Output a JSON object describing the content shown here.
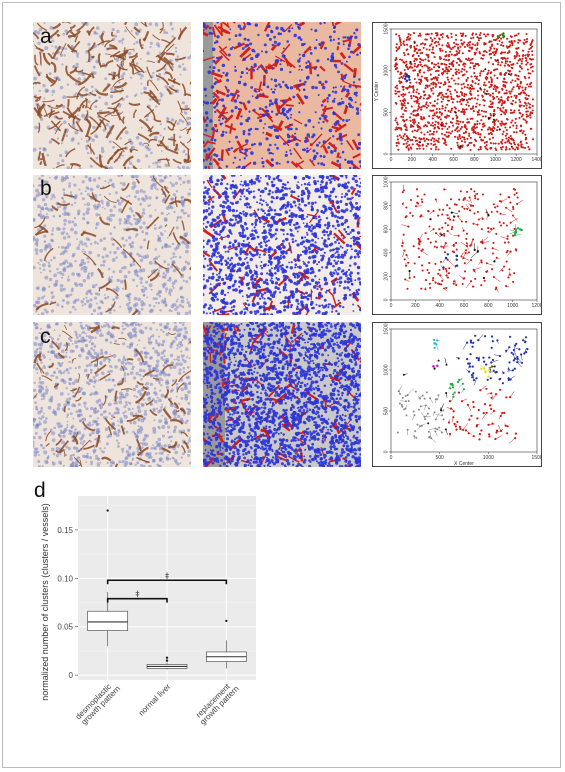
{
  "panels": {
    "a": {
      "letter": "a"
    },
    "b": {
      "letter": "b"
    },
    "c": {
      "letter": "c"
    },
    "d": {
      "letter": "d"
    }
  },
  "colors": {
    "tissue_bg": "#efe4dc",
    "stain_brown": "#8a4a26",
    "nuclei_blue": "#7a86c4",
    "overlay_blue": "#2b34d6",
    "overlay_red": "#d0231e",
    "overlay_bg": "#f3ece6",
    "point_red": "#cc1c17",
    "ggplot_bg": "#ebebeb"
  },
  "scatter_a": {
    "x_ticks": [
      "0",
      "200",
      "400",
      "600",
      "800",
      "1000",
      "1200",
      "1400"
    ],
    "y_ticks": [
      "0",
      "500",
      "1000",
      "1500"
    ],
    "ylabel": "Y Center",
    "cluster_colors": [
      "#cc1c17",
      "#1f8a1f",
      "#1f2ea8",
      "#111111"
    ]
  },
  "scatter_b": {
    "x_ticks": [
      "0",
      "200",
      "400",
      "600",
      "800",
      "1000",
      "1200"
    ],
    "y_ticks": [
      "0",
      "200",
      "400",
      "600",
      "800",
      "1000"
    ],
    "cluster_colors": [
      "#cc1c17",
      "#2aa84a",
      "#1f2ea8",
      "#111111"
    ]
  },
  "scatter_c": {
    "x_ticks": [
      "0",
      "500",
      "1000",
      "1500"
    ],
    "y_ticks": [
      "0",
      "500",
      "1000",
      "1500"
    ],
    "xlabel": "X Center",
    "cluster_colors": [
      "#888888",
      "#1f2ea8",
      "#cc1c17",
      "#2aa84a",
      "#e0e020",
      "#d020c0",
      "#20c0d0",
      "#111111"
    ]
  },
  "chart_data": {
    "type": "box",
    "ylabel": "normalized number of clusters (clusters / vessels)",
    "categories": [
      "desmoplastic growth pattern",
      "normal liver",
      "replacement growth pattern"
    ],
    "y_ticks": [
      "0",
      "0.05",
      "0.10",
      "0.15"
    ],
    "ylim": [
      -0.005,
      0.185
    ],
    "boxes": [
      {
        "label": "desmoplastic growth pattern",
        "min": 0.03,
        "q1": 0.046,
        "median": 0.055,
        "q3": 0.066,
        "max": 0.086,
        "outliers": [
          0.17
        ]
      },
      {
        "label": "normal liver",
        "min": 0.006,
        "q1": 0.007,
        "median": 0.009,
        "q3": 0.011,
        "max": 0.013,
        "outliers": [
          0.018,
          0.015
        ]
      },
      {
        "label": "replacement growth pattern",
        "min": 0.007,
        "q1": 0.014,
        "median": 0.019,
        "q3": 0.024,
        "max": 0.036,
        "outliers": [
          0.056
        ]
      }
    ],
    "significance": [
      {
        "from": "desmoplastic growth pattern",
        "to": "normal liver",
        "level": 0.079,
        "mark": "‡"
      },
      {
        "from": "desmoplastic growth pattern",
        "to": "replacement growth pattern",
        "level": 0.098,
        "mark": "‡"
      }
    ],
    "grid": true
  }
}
